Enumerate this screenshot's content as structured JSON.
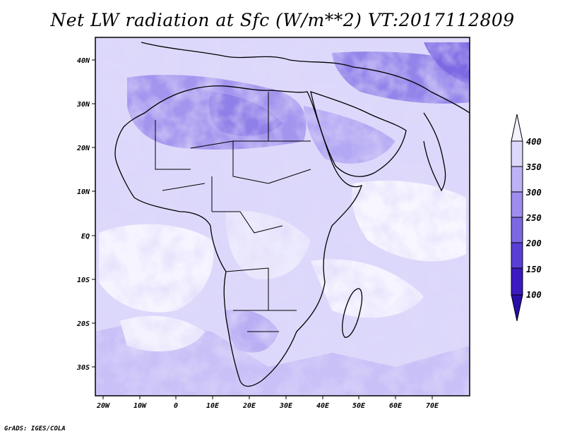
{
  "title": "Net LW radiation at Sfc (W/m**2) VT:2017112809",
  "credit": "GrADS: IGES/COLA",
  "map": {
    "lon_ticks": [
      "20W",
      "10W",
      "0",
      "10E",
      "20E",
      "30E",
      "40E",
      "50E",
      "60E",
      "70E"
    ],
    "lat_ticks": [
      "40N",
      "30N",
      "20N",
      "10N",
      "EQ",
      "10S",
      "20S",
      "30S"
    ]
  },
  "colorbar": {
    "levels": [
      "100",
      "150",
      "200",
      "250",
      "300",
      "350",
      "400"
    ],
    "colors": [
      "#3b1ac0",
      "#5a3fd6",
      "#7d68e3",
      "#9e8ded",
      "#bdb2f5",
      "#dcd8fb",
      "#f2f1fe"
    ]
  }
}
